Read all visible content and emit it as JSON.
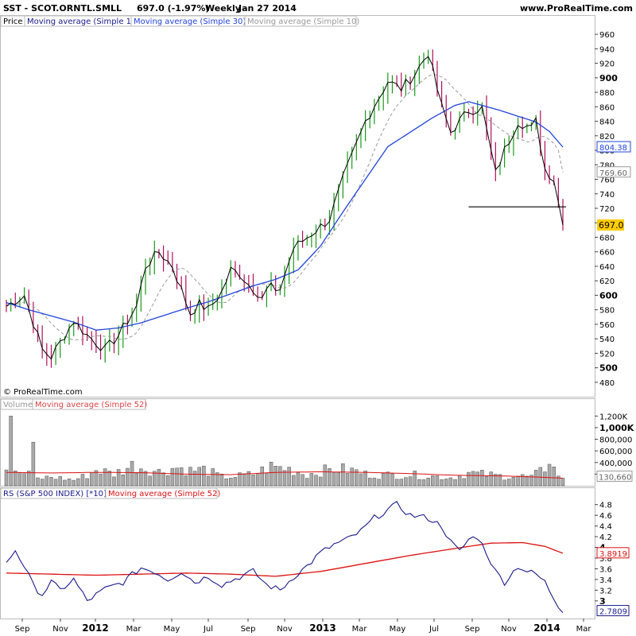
{
  "header": {
    "symbol": "SST - SCOT.ORNTL.SMLL",
    "quote": "697.0 (-1.97%)",
    "period": "Weekly",
    "date": "Jan 27 2014",
    "site": "www.ProRealTime.com"
  },
  "copyright": "© ProRealTime.com",
  "colors": {
    "up": "#1a9a1a",
    "down": "#b0105a",
    "price_line": "#000000",
    "ma30": "#2244dd",
    "ma10": "#999999",
    "rs": "#1a1a8a",
    "rs_ma": "#dd1111",
    "vol_ma": "#dd1111",
    "vol_bar": "#aaaaaa",
    "last_price_tag": "#ffcc00"
  },
  "panels": {
    "price": {
      "legend": [
        "Price",
        "Moving average (Simple 1)",
        "Moving average (Simple 30)",
        "Moving average (Simple 10)"
      ],
      "ticks": [
        "960",
        "940",
        "920",
        "900",
        "880",
        "860",
        "840",
        "820",
        "800",
        "780",
        "760",
        "740",
        "720",
        "700",
        "680",
        "660",
        "640",
        "620",
        "600",
        "580",
        "560",
        "540",
        "520",
        "500",
        "480"
      ],
      "bold_ticks": [
        "900",
        "600",
        "500"
      ],
      "tags": {
        "ma30": "804.38",
        "ma10": "769.60",
        "last": "697.0"
      }
    },
    "volume": {
      "legend": [
        "Volume",
        "Moving average (Simple 52)"
      ],
      "ticks": [
        "1,200K",
        "1,000K",
        "800,000",
        "600,000",
        "400,000",
        "200,000"
      ],
      "bold_ticks": [
        "1,000K"
      ],
      "tag": "130,660"
    },
    "rs": {
      "legend": [
        "RS (S&P 500 INDEX) [*10]",
        "Moving average (Simple 52)"
      ],
      "ticks": [
        "4.8",
        "4.6",
        "4.4",
        "4.2",
        "4",
        "3.8",
        "3.6",
        "3.4",
        "3.2",
        "3"
      ],
      "bold_ticks": [
        "4",
        "3"
      ],
      "tags": {
        "rs_ma": "3.8919",
        "rs": "2.7809"
      }
    }
  },
  "x_labels": [
    "Sep",
    "Nov",
    "2012",
    "Mar",
    "May",
    "Jul",
    "Sep",
    "Nov",
    "2013",
    "Mar",
    "May",
    "Jul",
    "Sep",
    "Nov",
    "2014",
    "Mar"
  ],
  "x_bold": [
    "2012",
    "2013",
    "2014"
  ],
  "chart_data": {
    "type": "line",
    "title": "SST - SCOT.ORNTL.SMLL Weekly",
    "weeks": 125,
    "ylim_price": [
      470,
      970
    ],
    "ylim_volume": [
      0,
      1300000
    ],
    "ylim_rs": [
      2.7,
      4.9
    ],
    "price_close_keyframes": [
      [
        0,
        585
      ],
      [
        4,
        600
      ],
      [
        8,
        525
      ],
      [
        10,
        515
      ],
      [
        15,
        565
      ],
      [
        18,
        545
      ],
      [
        22,
        525
      ],
      [
        25,
        545
      ],
      [
        29,
        585
      ],
      [
        31,
        640
      ],
      [
        34,
        660
      ],
      [
        37,
        640
      ],
      [
        41,
        575
      ],
      [
        43,
        588
      ],
      [
        45,
        580
      ],
      [
        48,
        605
      ],
      [
        50,
        635
      ],
      [
        52,
        630
      ],
      [
        54,
        615
      ],
      [
        57,
        598
      ],
      [
        59,
        615
      ],
      [
        60,
        600
      ],
      [
        61,
        610
      ],
      [
        64,
        665
      ],
      [
        69,
        690
      ],
      [
        72,
        705
      ],
      [
        75,
        760
      ],
      [
        80,
        840
      ],
      [
        85,
        895
      ],
      [
        88,
        885
      ],
      [
        91,
        905
      ],
      [
        94,
        935
      ],
      [
        97,
        860
      ],
      [
        99,
        825
      ],
      [
        101,
        840
      ],
      [
        103,
        855
      ],
      [
        106,
        858
      ],
      [
        109,
        768
      ],
      [
        111,
        800
      ],
      [
        114,
        840
      ],
      [
        117,
        830
      ],
      [
        118,
        840
      ],
      [
        120,
        775
      ],
      [
        122,
        760
      ],
      [
        124,
        697
      ]
    ],
    "ma30_keyframes": [
      [
        0,
        590
      ],
      [
        5,
        580
      ],
      [
        15,
        563
      ],
      [
        20,
        552
      ],
      [
        25,
        555
      ],
      [
        30,
        562
      ],
      [
        35,
        572
      ],
      [
        40,
        582
      ],
      [
        45,
        591
      ],
      [
        50,
        602
      ],
      [
        55,
        613
      ],
      [
        60,
        622
      ],
      [
        65,
        635
      ],
      [
        70,
        668
      ],
      [
        75,
        715
      ],
      [
        80,
        760
      ],
      [
        85,
        805
      ],
      [
        90,
        825
      ],
      [
        95,
        845
      ],
      [
        100,
        862
      ],
      [
        103,
        867
      ],
      [
        106,
        862
      ],
      [
        110,
        855
      ],
      [
        114,
        847
      ],
      [
        118,
        839
      ],
      [
        121,
        826
      ],
      [
        124,
        804.38
      ]
    ],
    "volume_keyframes": [
      [
        0,
        400000
      ],
      [
        1,
        1200000
      ],
      [
        2,
        300000
      ],
      [
        3,
        180000
      ],
      [
        5,
        250000
      ],
      [
        6,
        750000
      ],
      [
        7,
        120000
      ],
      [
        10,
        150000
      ],
      [
        15,
        100000
      ],
      [
        18,
        180000
      ],
      [
        20,
        280000
      ],
      [
        24,
        200000
      ],
      [
        28,
        350000
      ],
      [
        31,
        300000
      ],
      [
        34,
        240000
      ],
      [
        38,
        320000
      ],
      [
        41,
        260000
      ],
      [
        44,
        280000
      ],
      [
        48,
        150000
      ],
      [
        51,
        160000
      ],
      [
        55,
        200000
      ],
      [
        59,
        330000
      ],
      [
        63,
        290000
      ],
      [
        67,
        190000
      ],
      [
        70,
        250000
      ],
      [
        74,
        290000
      ],
      [
        78,
        250000
      ],
      [
        80,
        200000
      ],
      [
        84,
        180000
      ],
      [
        89,
        190000
      ],
      [
        94,
        170000
      ],
      [
        99,
        140000
      ],
      [
        103,
        220000
      ],
      [
        107,
        190000
      ],
      [
        111,
        160000
      ],
      [
        113,
        170000
      ],
      [
        117,
        150000
      ],
      [
        119,
        240000
      ],
      [
        121,
        370000
      ],
      [
        123,
        200000
      ],
      [
        124,
        130660
      ]
    ],
    "volume_ma_keyframes": [
      [
        0,
        230000
      ],
      [
        10,
        220000
      ],
      [
        20,
        230000
      ],
      [
        30,
        225000
      ],
      [
        40,
        200000
      ],
      [
        50,
        190000
      ],
      [
        60,
        230000
      ],
      [
        70,
        240000
      ],
      [
        80,
        230000
      ],
      [
        90,
        210000
      ],
      [
        100,
        180000
      ],
      [
        110,
        170000
      ],
      [
        118,
        150000
      ],
      [
        124,
        130660
      ]
    ],
    "rs_keyframes": [
      [
        0,
        3.72
      ],
      [
        2,
        3.95
      ],
      [
        4,
        3.65
      ],
      [
        6,
        3.28
      ],
      [
        8,
        3.12
      ],
      [
        10,
        3.35
      ],
      [
        12,
        3.2
      ],
      [
        15,
        3.4
      ],
      [
        18,
        3.0
      ],
      [
        22,
        3.22
      ],
      [
        26,
        3.35
      ],
      [
        30,
        3.62
      ],
      [
        33,
        3.55
      ],
      [
        36,
        3.4
      ],
      [
        39,
        3.55
      ],
      [
        42,
        3.35
      ],
      [
        45,
        3.46
      ],
      [
        48,
        3.3
      ],
      [
        52,
        3.45
      ],
      [
        55,
        3.55
      ],
      [
        58,
        3.3
      ],
      [
        61,
        3.2
      ],
      [
        64,
        3.45
      ],
      [
        67,
        3.65
      ],
      [
        70,
        3.9
      ],
      [
        73,
        4.05
      ],
      [
        76,
        4.15
      ],
      [
        79,
        4.3
      ],
      [
        82,
        4.55
      ],
      [
        85,
        4.7
      ],
      [
        87,
        4.8
      ],
      [
        90,
        4.6
      ],
      [
        94,
        4.55
      ],
      [
        97,
        4.4
      ],
      [
        99,
        4.1
      ],
      [
        101,
        3.92
      ],
      [
        103,
        4.15
      ],
      [
        105,
        4.2
      ],
      [
        107,
        3.9
      ],
      [
        109,
        3.55
      ],
      [
        111,
        3.35
      ],
      [
        114,
        3.65
      ],
      [
        116,
        3.55
      ],
      [
        118,
        3.5
      ],
      [
        120,
        3.35
      ],
      [
        122,
        3.05
      ],
      [
        124,
        2.78
      ]
    ],
    "rs_ma_keyframes": [
      [
        0,
        3.52
      ],
      [
        10,
        3.5
      ],
      [
        20,
        3.48
      ],
      [
        30,
        3.5
      ],
      [
        40,
        3.52
      ],
      [
        50,
        3.5
      ],
      [
        60,
        3.46
      ],
      [
        70,
        3.55
      ],
      [
        80,
        3.7
      ],
      [
        90,
        3.85
      ],
      [
        100,
        3.98
      ],
      [
        108,
        4.08
      ],
      [
        115,
        4.09
      ],
      [
        120,
        4.02
      ],
      [
        124,
        3.89
      ]
    ],
    "support_line": {
      "value": 722,
      "from_week": 103,
      "to_week": 124
    }
  }
}
